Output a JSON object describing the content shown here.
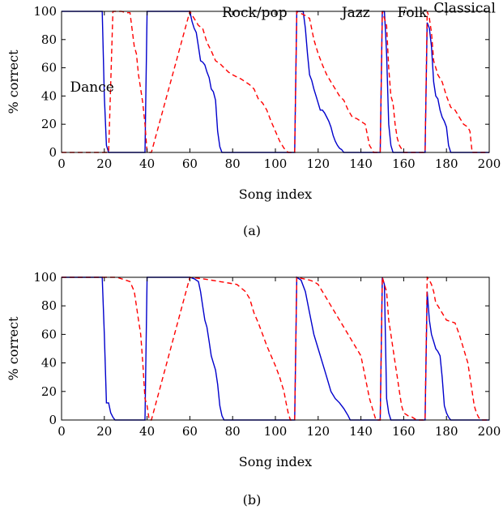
{
  "chart_data": [
    {
      "type": "line",
      "panel_label": "(a)",
      "xlabel": "Song index",
      "ylabel": "% correct",
      "xlim": [
        0,
        200
      ],
      "ylim": [
        0,
        100
      ],
      "xticks": [
        0,
        20,
        40,
        60,
        80,
        100,
        120,
        140,
        160,
        180,
        200
      ],
      "yticks": [
        0,
        20,
        40,
        60,
        80,
        100
      ],
      "annotations": [
        {
          "text": "Dance",
          "x": 4,
          "y": 43
        },
        {
          "text": "Rock/pop",
          "x": 75,
          "y": 96
        },
        {
          "text": "Jazz",
          "x": 131,
          "y": 96
        },
        {
          "text": "Folk",
          "x": 157,
          "y": 96
        },
        {
          "text": "Classical",
          "x": 174,
          "y": 99
        }
      ],
      "series": [
        {
          "color": "#0000cc",
          "dash": "solid",
          "x": [
            0,
            19,
            20,
            21,
            22,
            39,
            40,
            41,
            42,
            60,
            61,
            62,
            63,
            64,
            65,
            66,
            67,
            68,
            69,
            70,
            71,
            72,
            73,
            74,
            75,
            107,
            108,
            109,
            110,
            111,
            112,
            113,
            114,
            115,
            116,
            117,
            118,
            119,
            120,
            121,
            122,
            123,
            124,
            125,
            126,
            127,
            128,
            129,
            130,
            131,
            132,
            147,
            148,
            149,
            150,
            151,
            152,
            153,
            154,
            155,
            169,
            170,
            171,
            172,
            173,
            174,
            175,
            176,
            177,
            178,
            179,
            180,
            181,
            182,
            200
          ],
          "y": [
            100,
            100,
            40,
            5,
            0,
            0,
            100,
            100,
            100,
            100,
            93,
            88,
            85,
            75,
            65,
            64,
            62,
            57,
            53,
            45,
            43,
            37,
            15,
            4,
            0,
            0,
            0,
            0,
            100,
            100,
            100,
            100,
            88,
            70,
            55,
            51,
            45,
            40,
            35,
            30,
            30,
            28,
            25,
            22,
            18,
            12,
            8,
            5,
            3,
            2,
            0,
            0,
            0,
            0,
            100,
            100,
            70,
            20,
            5,
            0,
            0,
            0,
            92,
            88,
            75,
            50,
            40,
            38,
            30,
            25,
            22,
            18,
            5,
            0,
            0
          ]
        },
        {
          "color": "#ff0000",
          "dash": "dashed",
          "x": [
            0,
            19,
            20,
            21,
            22,
            24,
            26,
            28,
            30,
            32,
            34,
            35,
            36,
            37,
            38,
            39,
            40,
            41,
            42,
            60,
            62,
            64,
            66,
            68,
            70,
            72,
            74,
            76,
            78,
            80,
            84,
            88,
            90,
            92,
            94,
            96,
            98,
            100,
            102,
            104,
            106,
            107,
            108,
            109,
            110,
            114,
            116,
            118,
            120,
            122,
            124,
            126,
            128,
            130,
            132,
            134,
            136,
            138,
            140,
            142,
            144,
            146,
            147,
            148,
            149,
            150,
            151,
            152,
            153,
            154,
            155,
            156,
            157,
            158,
            160,
            162,
            164,
            166,
            168,
            169,
            170,
            171,
            172,
            173,
            174,
            176,
            178,
            180,
            182,
            184,
            186,
            188,
            190,
            191,
            192,
            193,
            200
          ],
          "y": [
            0,
            0,
            0,
            0,
            0,
            100,
            100,
            100,
            99,
            99,
            75,
            70,
            55,
            45,
            35,
            20,
            0,
            0,
            0,
            100,
            95,
            90,
            88,
            78,
            72,
            65,
            63,
            60,
            57,
            55,
            52,
            48,
            45,
            38,
            35,
            30,
            22,
            15,
            8,
            3,
            0,
            0,
            0,
            0,
            100,
            97,
            95,
            80,
            70,
            62,
            55,
            50,
            45,
            40,
            37,
            30,
            25,
            24,
            22,
            20,
            5,
            0,
            0,
            0,
            0,
            100,
            95,
            90,
            60,
            40,
            35,
            20,
            10,
            5,
            0,
            0,
            0,
            0,
            0,
            0,
            0,
            100,
            95,
            85,
            65,
            55,
            50,
            40,
            32,
            30,
            25,
            20,
            18,
            15,
            0,
            0,
            0
          ]
        }
      ]
    },
    {
      "type": "line",
      "panel_label": "(b)",
      "xlabel": "Song index",
      "ylabel": "% correct",
      "xlim": [
        0,
        200
      ],
      "ylim": [
        0,
        100
      ],
      "xticks": [
        0,
        20,
        40,
        60,
        80,
        100,
        120,
        140,
        160,
        180,
        200
      ],
      "yticks": [
        0,
        20,
        40,
        60,
        80,
        100
      ],
      "series": [
        {
          "color": "#0000cc",
          "dash": "solid",
          "x": [
            0,
            19,
            20,
            21,
            22,
            23,
            24,
            25,
            39,
            40,
            41,
            42,
            60,
            62,
            64,
            65,
            66,
            67,
            68,
            69,
            70,
            71,
            72,
            73,
            74,
            75,
            76,
            77,
            107,
            108,
            109,
            110,
            112,
            114,
            116,
            118,
            120,
            122,
            124,
            126,
            128,
            130,
            132,
            134,
            135,
            136,
            147,
            148,
            149,
            150,
            151,
            152,
            153,
            154,
            169,
            170,
            171,
            172,
            173,
            174,
            175,
            176,
            177,
            178,
            179,
            180,
            181,
            182,
            183,
            200
          ],
          "y": [
            100,
            100,
            60,
            12,
            12,
            5,
            2,
            0,
            0,
            100,
            100,
            100,
            100,
            99,
            97,
            90,
            80,
            70,
            65,
            55,
            45,
            40,
            35,
            25,
            10,
            3,
            0,
            0,
            0,
            0,
            0,
            100,
            98,
            90,
            75,
            60,
            50,
            40,
            30,
            20,
            15,
            12,
            8,
            3,
            0,
            0,
            0,
            0,
            0,
            100,
            95,
            15,
            5,
            0,
            0,
            0,
            90,
            70,
            60,
            55,
            50,
            48,
            45,
            30,
            10,
            5,
            2,
            0,
            0,
            0
          ]
        },
        {
          "color": "#ff0000",
          "dash": "dashed",
          "x": [
            0,
            26,
            28,
            30,
            32,
            34,
            35,
            36,
            37,
            38,
            39,
            40,
            41,
            42,
            60,
            66,
            70,
            74,
            78,
            82,
            86,
            88,
            90,
            92,
            94,
            96,
            98,
            100,
            102,
            103,
            104,
            105,
            106,
            107,
            108,
            109,
            110,
            116,
            118,
            120,
            122,
            124,
            126,
            128,
            130,
            132,
            134,
            136,
            138,
            140,
            142,
            144,
            146,
            147,
            148,
            149,
            150,
            151,
            152,
            153,
            154,
            155,
            156,
            157,
            158,
            159,
            160,
            162,
            164,
            166,
            168,
            169,
            170,
            171,
            172,
            173,
            174,
            175,
            176,
            178,
            180,
            182,
            184,
            186,
            188,
            190,
            192,
            193,
            194,
            195,
            196,
            200
          ],
          "y": [
            100,
            100,
            99,
            98,
            97,
            90,
            80,
            70,
            60,
            40,
            15,
            10,
            0,
            0,
            100,
            99,
            98,
            97,
            96,
            95,
            90,
            85,
            75,
            68,
            60,
            52,
            45,
            38,
            30,
            25,
            20,
            12,
            5,
            0,
            0,
            0,
            100,
            98,
            97,
            95,
            90,
            85,
            80,
            75,
            70,
            65,
            60,
            55,
            50,
            45,
            30,
            15,
            5,
            0,
            0,
            0,
            100,
            95,
            90,
            70,
            60,
            50,
            40,
            30,
            20,
            10,
            5,
            3,
            2,
            0,
            0,
            0,
            0,
            100,
            98,
            95,
            90,
            82,
            80,
            75,
            70,
            69,
            68,
            60,
            50,
            40,
            20,
            10,
            5,
            2,
            0,
            0
          ]
        }
      ]
    }
  ]
}
